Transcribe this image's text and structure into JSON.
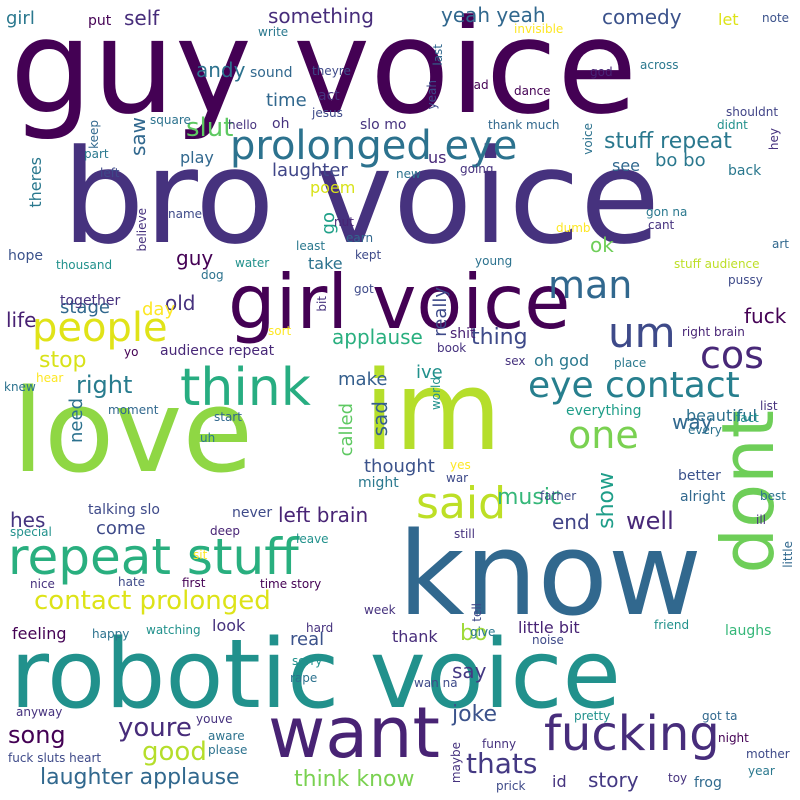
{
  "words": [
    {
      "text": "guy voice",
      "color": "#440154",
      "rot": 0
    },
    {
      "text": "bro voice",
      "color": "#46327e",
      "rot": 0
    },
    {
      "text": "love",
      "color": "#8fd744",
      "rot": 0
    },
    {
      "text": "know",
      "color": "#31688e",
      "rot": 0
    },
    {
      "text": "robotic voice",
      "color": "#21918c",
      "rot": 0
    },
    {
      "text": "im",
      "color": "#b5de2b",
      "rot": 0
    },
    {
      "text": "girl voice",
      "color": "#440154",
      "rot": 0
    },
    {
      "text": "want",
      "color": "#482374",
      "rot": 0
    },
    {
      "text": "dont",
      "color": "#6ece58",
      "rot": 90
    },
    {
      "text": "repeat stuff",
      "color": "#29af7f",
      "rot": 0
    },
    {
      "text": "prolonged eye",
      "color": "#2c728e",
      "rot": 0
    },
    {
      "text": "think",
      "color": "#27ad81",
      "rot": 0
    },
    {
      "text": "fucking",
      "color": "#472d7b",
      "rot": 0
    },
    {
      "text": "people",
      "color": "#e0e318",
      "rot": 0
    },
    {
      "text": "um",
      "color": "#3e4a89",
      "rot": 0
    },
    {
      "text": "cos",
      "color": "#482878",
      "rot": 0
    },
    {
      "text": "said",
      "color": "#bddf26",
      "rot": 0
    },
    {
      "text": "eye contact",
      "color": "#277f8e",
      "rot": 0
    },
    {
      "text": "one",
      "color": "#7ad151",
      "rot": 0
    },
    {
      "text": "contact prolonged",
      "color": "#dde318",
      "rot": 0
    },
    {
      "text": "thats",
      "color": "#443983",
      "rot": 0
    },
    {
      "text": "youre",
      "color": "#472c7a",
      "rot": 0
    },
    {
      "text": "joke",
      "color": "#3b528b",
      "rot": 0
    },
    {
      "text": "man",
      "color": "#31688e",
      "rot": 0
    },
    {
      "text": "slut",
      "color": "#5ec962",
      "rot": 0
    },
    {
      "text": "stuff repeat",
      "color": "#2a788e",
      "rot": 0
    },
    {
      "text": "right",
      "color": "#287c8e",
      "rot": 0
    },
    {
      "text": "good",
      "color": "#b5de2b",
      "rot": 0
    },
    {
      "text": "song",
      "color": "#440154",
      "rot": 0
    },
    {
      "text": "laughter applause",
      "color": "#31688e",
      "rot": 0
    },
    {
      "text": "think know",
      "color": "#7ad151",
      "rot": 0
    },
    {
      "text": "something",
      "color": "#472d7b",
      "rot": 0
    },
    {
      "text": "comedy",
      "color": "#3b528b",
      "rot": 0
    },
    {
      "text": "yeah yeah",
      "color": "#31688e",
      "rot": 0
    },
    {
      "text": "show",
      "color": "#1f9e89",
      "rot": 90
    },
    {
      "text": "well",
      "color": "#482878",
      "rot": 0
    },
    {
      "text": "music",
      "color": "#35b779",
      "rot": 0
    },
    {
      "text": "applause",
      "color": "#29af7f",
      "rot": 0
    },
    {
      "text": "thing",
      "color": "#3e4a89",
      "rot": 0
    },
    {
      "text": "bo bo",
      "color": "#2a788e",
      "rot": 0
    },
    {
      "text": "laughter",
      "color": "#404688",
      "rot": 0
    },
    {
      "text": "end",
      "color": "#414487",
      "rot": 0
    },
    {
      "text": "left brain",
      "color": "#482475",
      "rot": 0
    },
    {
      "text": "story",
      "color": "#443983",
      "rot": 0
    },
    {
      "text": "self",
      "color": "#472d7b",
      "rot": 0
    },
    {
      "text": "saw",
      "color": "#31688e",
      "rot": 90
    },
    {
      "text": "guy",
      "color": "#440154",
      "rot": 0
    },
    {
      "text": "old",
      "color": "#46327e",
      "rot": 0
    },
    {
      "text": "life",
      "color": "#482173",
      "rot": 0
    },
    {
      "text": "make",
      "color": "#355f8d",
      "rot": 0
    },
    {
      "text": "thought",
      "color": "#3b528b",
      "rot": 0
    },
    {
      "text": "sad",
      "color": "#355f8d",
      "rot": 90
    },
    {
      "text": "hes",
      "color": "#463480",
      "rot": 0
    },
    {
      "text": "stop",
      "color": "#d8e219",
      "rot": 0
    },
    {
      "text": "beautiful",
      "color": "#2d708e",
      "rot": 0
    },
    {
      "text": "ok",
      "color": "#6ece58",
      "rot": 0
    },
    {
      "text": "andy",
      "color": "#2c728e",
      "rot": 0
    },
    {
      "text": "time",
      "color": "#31688e",
      "rot": 0
    },
    {
      "text": "say",
      "color": "#443983",
      "rot": 0
    },
    {
      "text": "bo",
      "color": "#a0da39",
      "rot": 0
    },
    {
      "text": "fuck",
      "color": "#440154",
      "rot": 0
    },
    {
      "text": "way",
      "color": "#31688e",
      "rot": 0
    },
    {
      "text": "need",
      "color": "#2c728e",
      "rot": 90
    },
    {
      "text": "called",
      "color": "#5ec962",
      "rot": 90
    },
    {
      "text": "really",
      "color": "#3e4a89",
      "rot": 90
    },
    {
      "text": "look",
      "color": "#46327e",
      "rot": 0
    },
    {
      "text": "come",
      "color": "#3e4a89",
      "rot": 0
    },
    {
      "text": "little bit",
      "color": "#482475",
      "rot": 0
    },
    {
      "text": "thank",
      "color": "#472c7a",
      "rot": 0
    },
    {
      "text": "feeling",
      "color": "#440154",
      "rot": 0
    },
    {
      "text": "real",
      "color": "#3b528b",
      "rot": 0
    },
    {
      "text": "laughs",
      "color": "#35b779",
      "rot": 0
    },
    {
      "text": "frog",
      "color": "#306a8e",
      "rot": 0
    },
    {
      "text": "id",
      "color": "#46337f",
      "rot": 0
    },
    {
      "text": "poem",
      "color": "#d8e219",
      "rot": 0
    },
    {
      "text": "see",
      "color": "#31688e",
      "rot": 0
    },
    {
      "text": "day",
      "color": "#fde725",
      "rot": 0
    },
    {
      "text": "stage",
      "color": "#31688e",
      "rot": 0
    },
    {
      "text": "go",
      "color": "#1fa088",
      "rot": 90
    },
    {
      "text": "take",
      "color": "#2c728e",
      "rot": 0
    },
    {
      "text": "ive",
      "color": "#21918c",
      "rot": 0
    },
    {
      "text": "oh god",
      "color": "#2a788e",
      "rot": 0
    },
    {
      "text": "audience repeat",
      "color": "#482878",
      "rot": 0
    },
    {
      "text": "shit",
      "color": "#482173",
      "rot": 0
    },
    {
      "text": "girl",
      "color": "#2a788e",
      "rot": 0
    },
    {
      "text": "put",
      "color": "#440154",
      "rot": 0
    },
    {
      "text": "let",
      "color": "#dde318",
      "rot": 0
    },
    {
      "text": "theres",
      "color": "#2a788e",
      "rot": 90
    },
    {
      "text": "play",
      "color": "#31688e",
      "rot": 0
    },
    {
      "text": "us",
      "color": "#482878",
      "rot": 0
    },
    {
      "text": "oh",
      "color": "#46327e",
      "rot": 0
    },
    {
      "text": "act",
      "color": "#46327e",
      "rot": 0
    },
    {
      "text": "slo mo",
      "color": "#46327e",
      "rot": 0
    },
    {
      "text": "hope",
      "color": "#3b528b",
      "rot": 0
    },
    {
      "text": "together",
      "color": "#46327e",
      "rot": 0
    },
    {
      "text": "alright",
      "color": "#31688e",
      "rot": 0
    },
    {
      "text": "better",
      "color": "#3b528b",
      "rot": 0
    },
    {
      "text": "talking slo",
      "color": "#3e4a89",
      "rot": 0
    },
    {
      "text": "never",
      "color": "#3e4a89",
      "rot": 0
    },
    {
      "text": "deep",
      "color": "#482475",
      "rot": 0
    },
    {
      "text": "might",
      "color": "#2a788e",
      "rot": 0
    },
    {
      "text": "world",
      "color": "#21918c",
      "rot": 90
    },
    {
      "text": "everything",
      "color": "#1f9e89",
      "rot": 0
    },
    {
      "text": "back",
      "color": "#2a788e",
      "rot": 0
    },
    {
      "text": "going",
      "color": "#46327e",
      "rot": 0
    },
    {
      "text": "thank much",
      "color": "#31688e",
      "rot": 0
    },
    {
      "text": "dance",
      "color": "#440154",
      "rot": 0
    },
    {
      "text": "dad",
      "color": "#440154",
      "rot": 0
    },
    {
      "text": "sound",
      "color": "#31688e",
      "rot": 0
    },
    {
      "text": "theyre",
      "color": "#3e4a89",
      "rot": 0
    },
    {
      "text": "write",
      "color": "#2a788e",
      "rot": 0
    },
    {
      "text": "invisible",
      "color": "#fde725",
      "rot": 0
    },
    {
      "text": "note",
      "color": "#3b528b",
      "rot": 0
    },
    {
      "text": "god",
      "color": "#482475",
      "rot": 0
    },
    {
      "text": "across",
      "color": "#2a788e",
      "rot": 0
    },
    {
      "text": "shouldnt",
      "color": "#414487",
      "rot": 0
    },
    {
      "text": "didnt",
      "color": "#21918c",
      "rot": 0
    },
    {
      "text": "hey",
      "color": "#46327e",
      "rot": 90
    },
    {
      "text": "last",
      "color": "#31688e",
      "rot": 90
    },
    {
      "text": "yeah",
      "color": "#3e4a89",
      "rot": 90
    },
    {
      "text": "voice",
      "color": "#2c728e",
      "rot": 90
    },
    {
      "text": "jesus",
      "color": "#3e4a89",
      "rot": 0
    },
    {
      "text": "square",
      "color": "#2c728e",
      "rot": 0
    },
    {
      "text": "hello",
      "color": "#46327e",
      "rot": 0
    },
    {
      "text": "keep",
      "color": "#31688e",
      "rot": 90
    },
    {
      "text": "part",
      "color": "#2a788e",
      "rot": 0
    },
    {
      "text": "left",
      "color": "#3e4a89",
      "rot": 0
    },
    {
      "text": "new",
      "color": "#2c728e",
      "rot": 0
    },
    {
      "text": "name",
      "color": "#3e4a89",
      "rot": 0
    },
    {
      "text": "believe",
      "color": "#46327e",
      "rot": 90
    },
    {
      "text": "nut",
      "color": "#482475",
      "rot": 0
    },
    {
      "text": "earn",
      "color": "#31688e",
      "rot": 0
    },
    {
      "text": "cant",
      "color": "#46327e",
      "rot": 0
    },
    {
      "text": "dumb",
      "color": "#fde725",
      "rot": 0
    },
    {
      "text": "gon na",
      "color": "#2a788e",
      "rot": 0
    },
    {
      "text": "least",
      "color": "#2a788e",
      "rot": 0
    },
    {
      "text": "art",
      "color": "#31688e",
      "rot": 0
    },
    {
      "text": "thousand",
      "color": "#21918c",
      "rot": 0
    },
    {
      "text": "dog",
      "color": "#2c728e",
      "rot": 0
    },
    {
      "text": "water",
      "color": "#21918c",
      "rot": 0
    },
    {
      "text": "kept",
      "color": "#3e4a89",
      "rot": 0
    },
    {
      "text": "young",
      "color": "#2c728e",
      "rot": 0
    },
    {
      "text": "stuff audience",
      "color": "#bddf26",
      "rot": 0
    },
    {
      "text": "pussy",
      "color": "#3e4a89",
      "rot": 0
    },
    {
      "text": "bit",
      "color": "#46327e",
      "rot": 90
    },
    {
      "text": "got",
      "color": "#3e4a89",
      "rot": 0
    },
    {
      "text": "sort",
      "color": "#fde725",
      "rot": 0
    },
    {
      "text": "right brain",
      "color": "#482475",
      "rot": 0
    },
    {
      "text": "book",
      "color": "#46327e",
      "rot": 0
    },
    {
      "text": "yo",
      "color": "#440154",
      "rot": 0
    },
    {
      "text": "sex",
      "color": "#46327e",
      "rot": 0
    },
    {
      "text": "place",
      "color": "#2a788e",
      "rot": 0
    },
    {
      "text": "hear",
      "color": "#fde725",
      "rot": 0
    },
    {
      "text": "knew",
      "color": "#2c728e",
      "rot": 0
    },
    {
      "text": "moment",
      "color": "#31688e",
      "rot": 0
    },
    {
      "text": "start",
      "color": "#31688e",
      "rot": 0
    },
    {
      "text": "list",
      "color": "#46327e",
      "rot": 0
    },
    {
      "text": "fact",
      "color": "#21918c",
      "rot": 0
    },
    {
      "text": "every",
      "color": "#2c728e",
      "rot": 0
    },
    {
      "text": "uh",
      "color": "#2a788e",
      "rot": 0
    },
    {
      "text": "yes",
      "color": "#fde725",
      "rot": 0
    },
    {
      "text": "war",
      "color": "#3e4a89",
      "rot": 0
    },
    {
      "text": "father",
      "color": "#3e4a89",
      "rot": 0
    },
    {
      "text": "best",
      "color": "#2c728e",
      "rot": 0
    },
    {
      "text": "ill",
      "color": "#46327e",
      "rot": 0
    },
    {
      "text": "special",
      "color": "#21918c",
      "rot": 0
    },
    {
      "text": "leave",
      "color": "#21918c",
      "rot": 0
    },
    {
      "text": "sit",
      "color": "#fde725",
      "rot": 0
    },
    {
      "text": "still",
      "color": "#46327e",
      "rot": 0
    },
    {
      "text": "little",
      "color": "#31688e",
      "rot": 90
    },
    {
      "text": "nice",
      "color": "#46327e",
      "rot": 0
    },
    {
      "text": "hate",
      "color": "#3e4a89",
      "rot": 0
    },
    {
      "text": "first",
      "color": "#440154",
      "rot": 0
    },
    {
      "text": "time story",
      "color": "#440154",
      "rot": 0
    },
    {
      "text": "week",
      "color": "#46327e",
      "rot": 0
    },
    {
      "text": "tell",
      "color": "#3e4a89",
      "rot": 90
    },
    {
      "text": "happy",
      "color": "#2c728e",
      "rot": 0
    },
    {
      "text": "watching",
      "color": "#21918c",
      "rot": 0
    },
    {
      "text": "hard",
      "color": "#46327e",
      "rot": 0
    },
    {
      "text": "give",
      "color": "#2a788e",
      "rot": 0
    },
    {
      "text": "noise",
      "color": "#3e4a89",
      "rot": 0
    },
    {
      "text": "friend",
      "color": "#21918c",
      "rot": 0
    },
    {
      "text": "sorry",
      "color": "#21918c",
      "rot": 0
    },
    {
      "text": "rape",
      "color": "#2c728e",
      "rot": 0
    },
    {
      "text": "wan na",
      "color": "#3e4a89",
      "rot": 0
    },
    {
      "text": "anyway",
      "color": "#46327e",
      "rot": 0
    },
    {
      "text": "youve",
      "color": "#46327e",
      "rot": 0
    },
    {
      "text": "aware",
      "color": "#2c728e",
      "rot": 0
    },
    {
      "text": "please",
      "color": "#2c728e",
      "rot": 0
    },
    {
      "text": "maybe",
      "color": "#46327e",
      "rot": 90
    },
    {
      "text": "pretty",
      "color": "#21918c",
      "rot": 0
    },
    {
      "text": "funny",
      "color": "#46327e",
      "rot": 0
    },
    {
      "text": "got ta",
      "color": "#31688e",
      "rot": 0
    },
    {
      "text": "night",
      "color": "#440154",
      "rot": 0
    },
    {
      "text": "mother",
      "color": "#3e4a89",
      "rot": 0
    },
    {
      "text": "year",
      "color": "#2a788e",
      "rot": 0
    },
    {
      "text": "toy",
      "color": "#46327e",
      "rot": 0
    },
    {
      "text": "fuck sluts heart",
      "color": "#3e4a89",
      "rot": 0
    },
    {
      "text": "prick",
      "color": "#3e4a89",
      "rot": 0
    }
  ]
}
